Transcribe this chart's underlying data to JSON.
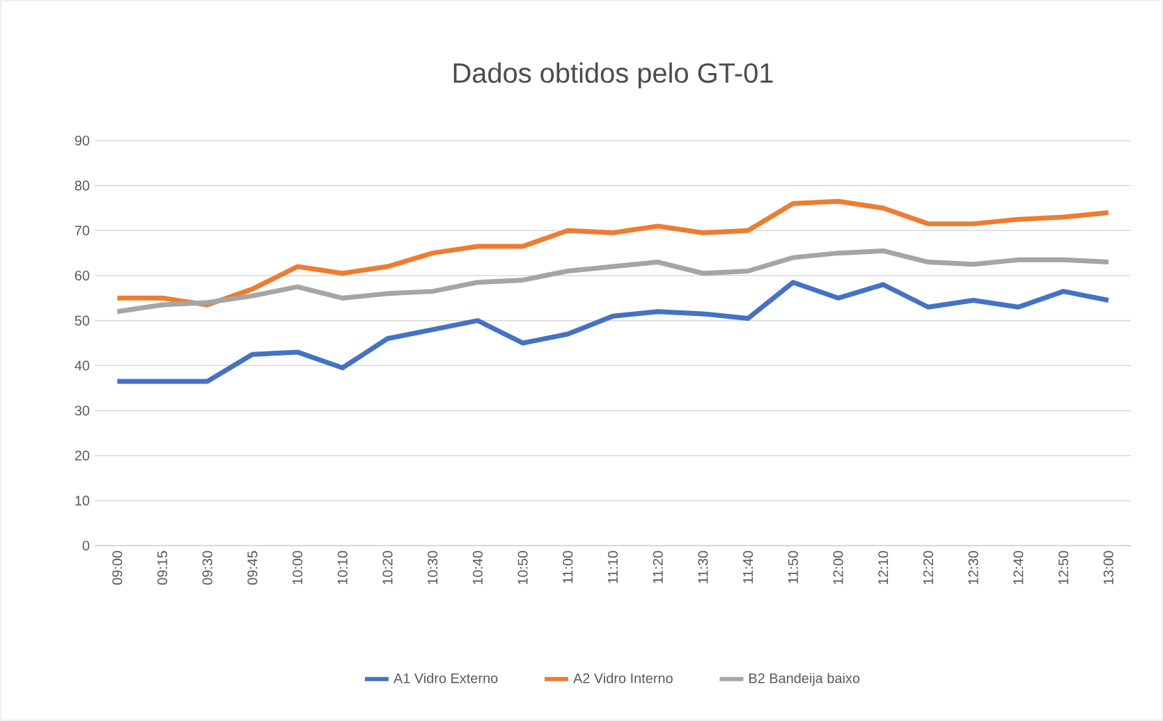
{
  "chart_data": {
    "type": "line",
    "title": "Dados obtidos pelo GT-01",
    "categories": [
      "09:00",
      "09:15",
      "09:30",
      "09:45",
      "10:00",
      "10:10",
      "10:20",
      "10:30",
      "10:40",
      "10:50",
      "11:00",
      "11:10",
      "11:20",
      "11:30",
      "11:40",
      "11:50",
      "12:00",
      "12:10",
      "12:20",
      "12:30",
      "12:40",
      "12:50",
      "13:00"
    ],
    "series": [
      {
        "name": "A1 Vidro Externo",
        "color": "#4472c4",
        "values": [
          36.5,
          36.5,
          36.5,
          42.5,
          43,
          39.5,
          46,
          48,
          50,
          45,
          47,
          51,
          52,
          51.5,
          50.5,
          58.5,
          55,
          58,
          53,
          54.5,
          53,
          56.5,
          54.5
        ]
      },
      {
        "name": "A2 Vidro Interno",
        "color": "#ed7d31",
        "values": [
          55,
          55,
          53.5,
          57,
          62,
          60.5,
          62,
          65,
          66.5,
          66.5,
          70,
          69.5,
          71,
          69.5,
          70,
          76,
          76.5,
          75,
          71.5,
          71.5,
          72.5,
          73,
          74
        ]
      },
      {
        "name": "B2 Bandeija baixo",
        "color": "#a5a5a5",
        "values": [
          52,
          53.5,
          54,
          55.5,
          57.5,
          55,
          56,
          56.5,
          58.5,
          59,
          61,
          62,
          63,
          60.5,
          61,
          64,
          65,
          65.5,
          63,
          62.5,
          63.5,
          63.5,
          63
        ]
      }
    ],
    "ylim": [
      0,
      90
    ],
    "yticks": [
      0,
      10,
      20,
      30,
      40,
      50,
      60,
      70,
      80,
      90
    ],
    "grid": "y",
    "legend": "bottom",
    "marker": "none",
    "line_style": "solid"
  }
}
